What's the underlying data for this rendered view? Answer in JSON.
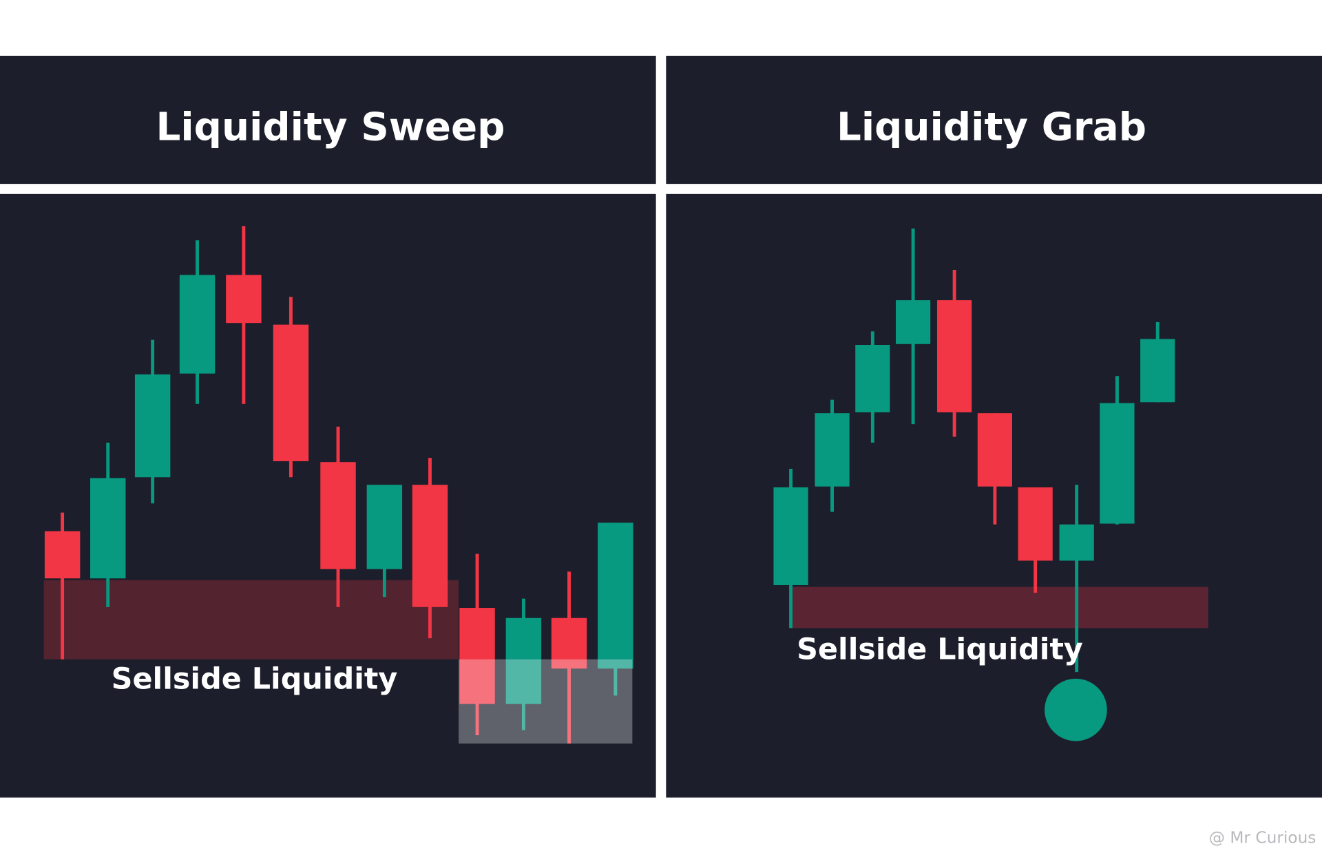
{
  "panels": [
    {
      "title": "Liquidity Sweep",
      "zone_label": "Sellside Liquidity"
    },
    {
      "title": "Liquidity Grab",
      "zone_label": "Sellside Liquidity"
    }
  ],
  "watermark": "@ Mr Curious"
}
